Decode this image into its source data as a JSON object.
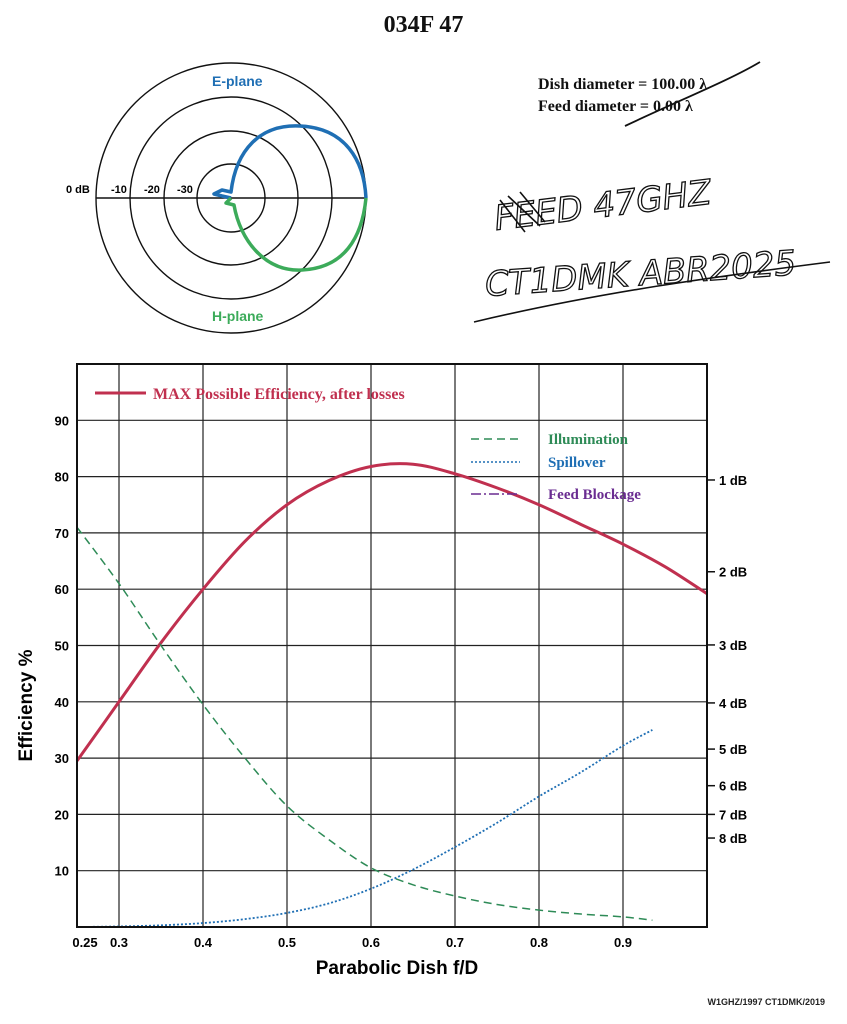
{
  "title": "034F 47",
  "dish_info": {
    "dish_diameter": "Dish diameter = 100.00 λ",
    "feed_diameter": "Feed diameter = 0.00 λ"
  },
  "handwritten_note": [
    "FEED 47GHZ",
    "CT1DMK ABR2025"
  ],
  "credit": "W1GHZ/1997 CT1DMK/2019",
  "colors": {
    "max_efficiency": "#c0304f",
    "illumination": "#2e8b57",
    "spillover": "#1f6fb4",
    "feed_blockage": "#6a2c91",
    "e_plane": "#1f6fb4",
    "h_plane": "#3cab5a"
  },
  "polar_pattern": {
    "e_plane_label": "E-plane",
    "h_plane_label": "H-plane",
    "rings": [
      "0 dB",
      "-10",
      "-20",
      "-30"
    ]
  },
  "chart_data": {
    "type": "line",
    "xlabel": "Parabolic Dish f/D",
    "ylabel": "Efficiency %",
    "xlim": [
      0.25,
      1.0
    ],
    "ylim": [
      0,
      100
    ],
    "x_ticks": [
      "0.25",
      "0.3",
      "0.4",
      "0.5",
      "0.6",
      "0.7",
      "0.8",
      "0.9"
    ],
    "y_ticks": [
      "10",
      "20",
      "30",
      "40",
      "50",
      "60",
      "70",
      "80",
      "90"
    ],
    "right_axis_ticks": [
      {
        "label": "1 dB",
        "value": 79.4
      },
      {
        "label": "2 dB",
        "value": 63.1
      },
      {
        "label": "3 dB",
        "value": 50.1
      },
      {
        "label": "4 dB",
        "value": 39.8
      },
      {
        "label": "5 dB",
        "value": 31.6
      },
      {
        "label": "6 dB",
        "value": 25.1
      },
      {
        "label": "7 dB",
        "value": 20.0
      },
      {
        "label": "8 dB",
        "value": 15.8
      }
    ],
    "grid": true,
    "legend": "top",
    "series": [
      {
        "name": "MAX Possible Efficiency, after losses",
        "x": [
          0.25,
          0.3,
          0.35,
          0.4,
          0.45,
          0.5,
          0.55,
          0.6,
          0.65,
          0.7,
          0.75,
          0.8,
          0.85,
          0.9,
          0.95,
          1.0
        ],
        "y": [
          29.5,
          40,
          50.5,
          60,
          68.5,
          75,
          79.3,
          81.8,
          82.2,
          80.5,
          78,
          75,
          71.5,
          68,
          64,
          59.2
        ]
      },
      {
        "name": "Illumination",
        "x": [
          0.25,
          0.3,
          0.35,
          0.4,
          0.45,
          0.5,
          0.55,
          0.6,
          0.65,
          0.7,
          0.75,
          0.8,
          0.85,
          0.9,
          0.935
        ],
        "y": [
          71,
          61,
          50,
          39.5,
          30,
          21.5,
          15.5,
          10.5,
          7.5,
          5.5,
          4,
          3,
          2.3,
          1.8,
          1.2
        ]
      },
      {
        "name": "Spillover",
        "x": [
          0.25,
          0.3,
          0.35,
          0.4,
          0.45,
          0.5,
          0.55,
          0.6,
          0.65,
          0.7,
          0.75,
          0.8,
          0.85,
          0.9,
          0.935
        ],
        "y": [
          0,
          0.1,
          0.3,
          0.7,
          1.4,
          2.5,
          4.2,
          6.8,
          10.2,
          14.2,
          18.5,
          23.2,
          27.5,
          32.2,
          35
        ]
      },
      {
        "name": "Feed Blockage",
        "x": [
          0.25,
          1.0
        ],
        "y": [
          0,
          0
        ]
      }
    ]
  }
}
